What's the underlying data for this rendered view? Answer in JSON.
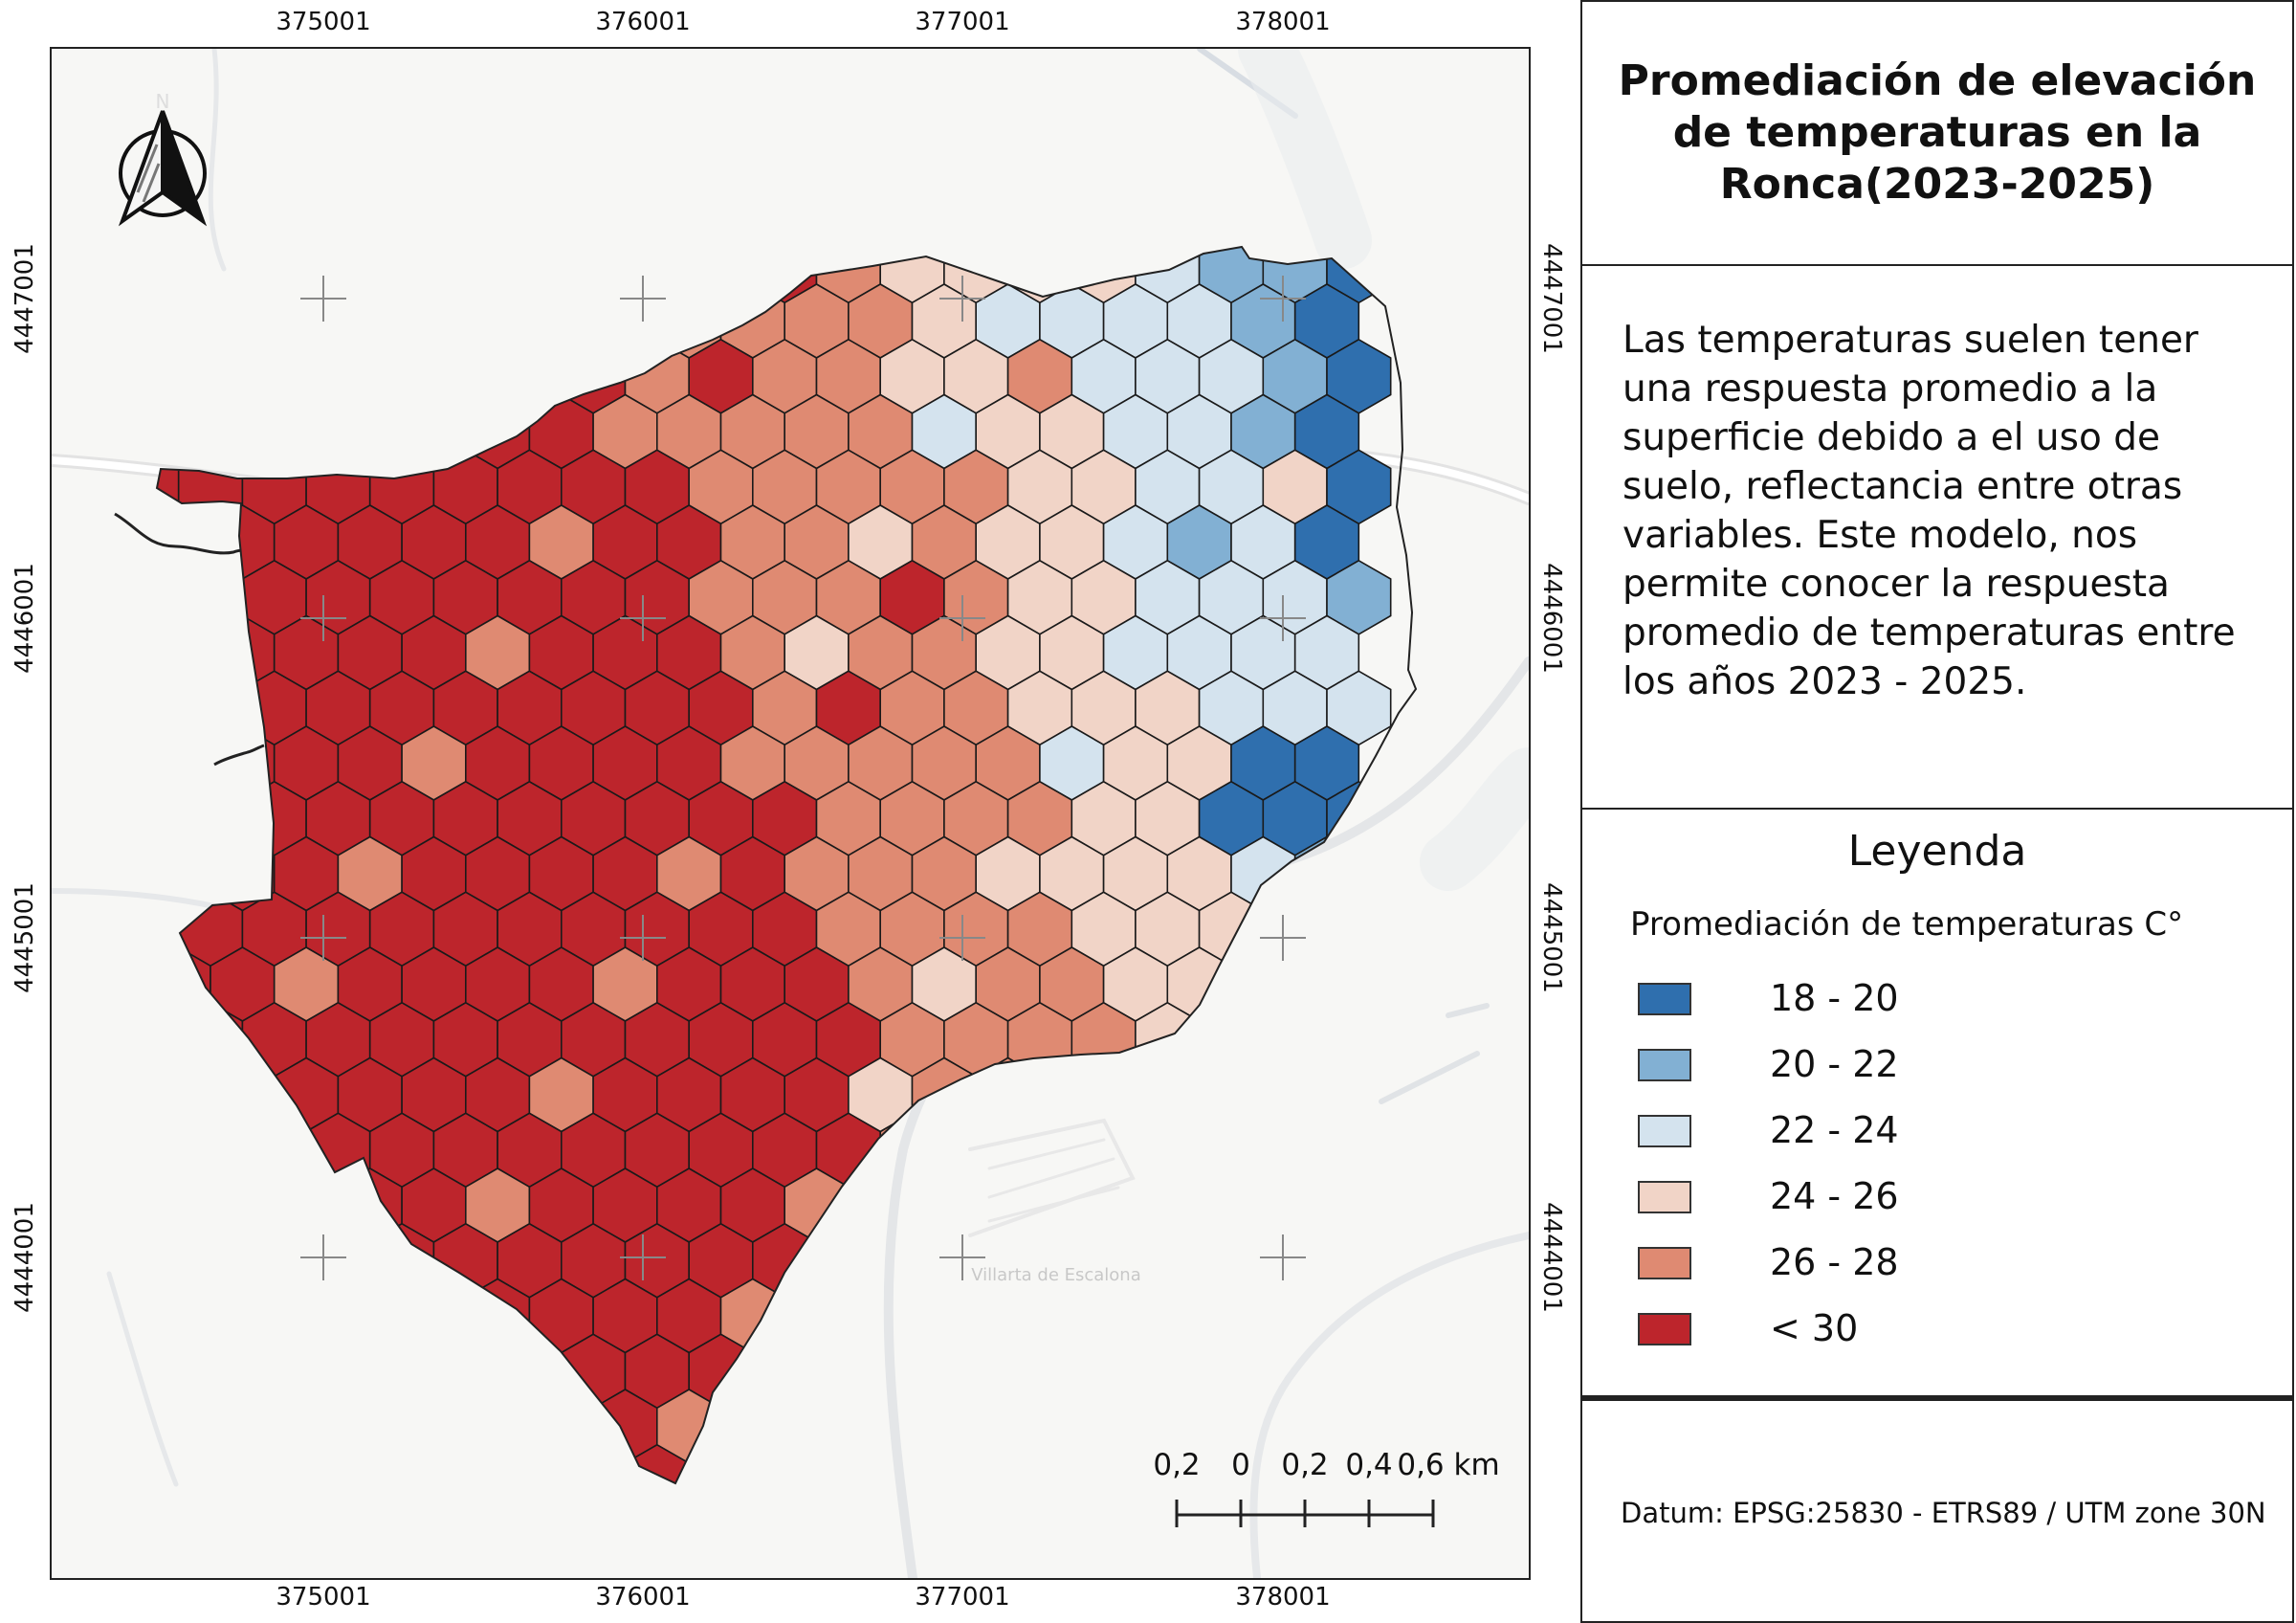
{
  "title": "Promediación de elevación de temperaturas en la Ronca(2023-2025)",
  "description": "Las temperaturas suelen tener una respuesta promedio a la superficie debido a el uso de suelo, reflectancia entre otras variables. Este modelo, nos permite conocer la respuesta promedio de temperaturas entre los años 2023 - 2025.",
  "legend": {
    "title": "Leyenda",
    "subtitle": "Promediación de temperaturas C°",
    "classes": [
      {
        "label": "18 - 20",
        "color": "#2f6fae"
      },
      {
        "label": "20 - 22",
        "color": "#82b0d3"
      },
      {
        "label": "22 - 24",
        "color": "#d4e3ee"
      },
      {
        "label": "24 - 26",
        "color": "#f1d4c7"
      },
      {
        "label": "26 - 28",
        "color": "#df8a72"
      },
      {
        "label": "< 30",
        "color": "#bd252c"
      }
    ]
  },
  "datum": "Datum:  EPSG:25830 - ETRS89 / UTM zone 30N",
  "grid": {
    "x_ticks": [
      "375001",
      "376001",
      "377001",
      "378001"
    ],
    "y_ticks": [
      "4447001",
      "4446001",
      "4445001",
      "4444001"
    ]
  },
  "scale_bar": {
    "labels": [
      "0,2",
      "0",
      "0,2",
      "0,4",
      "0,6 km"
    ]
  },
  "north_arrow": {
    "label": "N",
    "icon": "north-arrow-icon"
  },
  "basemap_labels": {
    "town": "Villarta de Escalona"
  }
}
